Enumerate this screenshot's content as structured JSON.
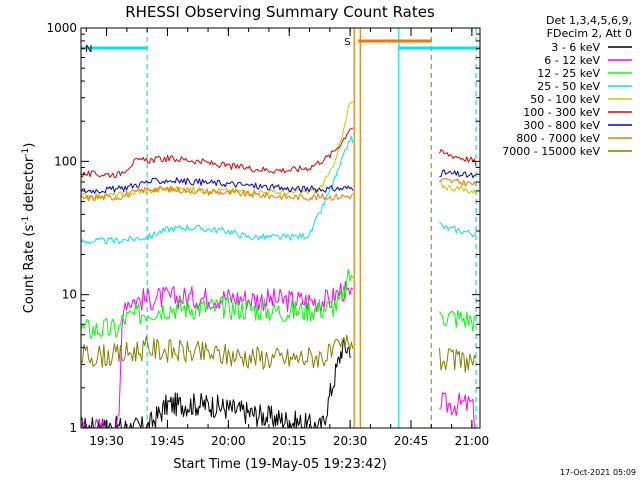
{
  "chart_data": {
    "type": "line",
    "title": "RHESSI Observing Summary Count Rates",
    "xlabel": "Start Time (19-May-05 19:23:42)",
    "ylabel": "Count Rate (s",
    "ylabel_sup1": "-1",
    "ylabel_mid": " detector",
    "ylabel_sup2": "-1",
    "ylabel_end": ")",
    "y_scale": "log",
    "ylim": [
      1,
      1000
    ],
    "xlim": [
      "19:23:42",
      "21:02:00"
    ],
    "x_ticks": [
      "19:30",
      "19:45",
      "20:00",
      "20:15",
      "20:30",
      "20:45",
      "21:00"
    ],
    "y_ticks": [
      "1",
      "10",
      "100",
      "1000"
    ],
    "legend_header": [
      "Det 1,3,4,5,6,9,",
      "FDecim 2, Att 0"
    ],
    "legend_position": "right",
    "footer_date": "17-Oct-2021 05:09",
    "flags": [
      {
        "label": "N",
        "color": "#00e5e5",
        "start": "19:23:42",
        "end": "19:40:00"
      },
      {
        "label": "S",
        "color": "#f07800",
        "start": "20:32:00",
        "end": "20:50:00"
      },
      {
        "label": "",
        "color": "#00e5e5",
        "start": "20:42:00",
        "end": "21:02:00"
      }
    ],
    "markers": [
      {
        "time": "19:40:00",
        "color": "#00e5e5",
        "style": "dashed"
      },
      {
        "time": "20:42:00",
        "color": "#00e5e5",
        "style": "solid"
      },
      {
        "time": "20:31:00",
        "color": "#f07800",
        "style": "solid"
      },
      {
        "time": "20:32:30",
        "color": "#f07800",
        "style": "solid"
      },
      {
        "time": "20:50:00",
        "color": "#f07800",
        "style": "dashed"
      },
      {
        "time": "21:01:00",
        "color": "#00e5e5",
        "style": "dashed"
      }
    ],
    "gap": [
      "20:31:00",
      "20:52:00"
    ],
    "series": [
      {
        "name": "3 - 6 keV",
        "color": "#000000",
        "x": [
          "19:23:42",
          "19:40:00",
          "19:45:00",
          "19:55:00",
          "20:23:00",
          "20:28:00",
          "20:30:00"
        ],
        "y": [
          1,
          1,
          1.5,
          1.5,
          1,
          4,
          4
        ]
      },
      {
        "name": "6 - 12 keV",
        "color": "#ff00ff",
        "x": [
          "19:23:42",
          "19:33:00",
          "19:34:00",
          "19:45:00",
          "20:00:00",
          "20:15:00",
          "20:25:00",
          "20:28:00",
          "20:30:00",
          "20:53:00",
          "21:00:00",
          "21:01:00"
        ],
        "y": [
          1,
          1,
          9,
          9.5,
          9.5,
          9,
          9,
          11,
          9.5,
          1.5,
          1.5,
          1
        ]
      },
      {
        "name": "12 - 25 keV",
        "color": "#00ff00",
        "x": [
          "19:23:42",
          "19:33:00",
          "19:34:00",
          "19:40:00",
          "19:45:00",
          "20:00:00",
          "20:15:00",
          "20:25:00",
          "20:28:00",
          "20:30:00",
          "20:53:00",
          "21:00:00",
          "21:01:00"
        ],
        "y": [
          5.5,
          5.5,
          6.5,
          7.5,
          8,
          8,
          7.5,
          8,
          9,
          14,
          7,
          6.5,
          6
        ]
      },
      {
        "name": "25 - 50 keV",
        "color": "#00e5e5",
        "x": [
          "19:23:42",
          "19:33:00",
          "19:40:00",
          "19:45:00",
          "19:50:00",
          "20:00:00",
          "20:05:00",
          "20:15:00",
          "20:20:00",
          "20:25:00",
          "20:28:00",
          "20:30:00",
          "20:53:00",
          "21:00:00",
          "21:01:00"
        ],
        "y": [
          25,
          25.5,
          27,
          31,
          32,
          30,
          27,
          27,
          28,
          60,
          100,
          150,
          32,
          29,
          28
        ]
      },
      {
        "name": "50 - 100 keV",
        "color": "#c8c800",
        "x": [
          "19:23:42",
          "19:33:00",
          "19:40:00",
          "19:45:00",
          "20:00:00",
          "20:15:00",
          "20:22:00",
          "20:25:00",
          "20:28:00",
          "20:30:00",
          "20:53:00",
          "21:00:00",
          "21:01:00"
        ],
        "y": [
          55,
          56,
          60,
          62,
          60,
          58,
          60,
          80,
          150,
          280,
          65,
          60,
          58
        ]
      },
      {
        "name": "100 - 300 keV",
        "color": "#e00000",
        "x": [
          "19:23:42",
          "19:33:00",
          "19:37:00",
          "19:45:00",
          "19:50:00",
          "20:00:00",
          "20:10:00",
          "20:15:00",
          "20:20:00",
          "20:25:00",
          "20:28:00",
          "20:30:00",
          "20:53:00",
          "21:00:00",
          "21:01:00"
        ],
        "y": [
          80,
          80,
          100,
          105,
          103,
          92,
          86,
          86,
          90,
          110,
          140,
          180,
          115,
          102,
          97
        ]
      },
      {
        "name": "300 - 800 keV",
        "color": "#0000e0",
        "x": [
          "19:23:42",
          "19:33:00",
          "19:40:00",
          "19:45:00",
          "20:00:00",
          "20:15:00",
          "20:25:00",
          "20:30:00",
          "20:53:00",
          "21:00:00",
          "21:01:00"
        ],
        "y": [
          60,
          62,
          70,
          72,
          68,
          62,
          62,
          63,
          82,
          78,
          76
        ]
      },
      {
        "name": "800 - 7000 keV",
        "color": "#f07800",
        "x": [
          "19:23:42",
          "19:33:00",
          "19:40:00",
          "19:45:00",
          "20:00:00",
          "20:15:00",
          "20:25:00",
          "20:30:00",
          "20:53:00",
          "21:00:00",
          "21:01:00"
        ],
        "y": [
          53,
          54,
          62,
          62,
          58,
          54,
          54,
          55,
          72,
          68,
          66
        ]
      },
      {
        "name": "7000 - 15000 keV",
        "color": "#808000",
        "x": [
          "19:23:42",
          "19:33:00",
          "19:40:00",
          "19:45:00",
          "20:00:00",
          "20:15:00",
          "20:25:00",
          "20:30:00",
          "20:53:00",
          "21:00:00",
          "21:01:00"
        ],
        "y": [
          3.5,
          3.5,
          4,
          3.8,
          3.5,
          3.3,
          3.5,
          4.5,
          3.2,
          3.2,
          2.8
        ]
      }
    ]
  }
}
